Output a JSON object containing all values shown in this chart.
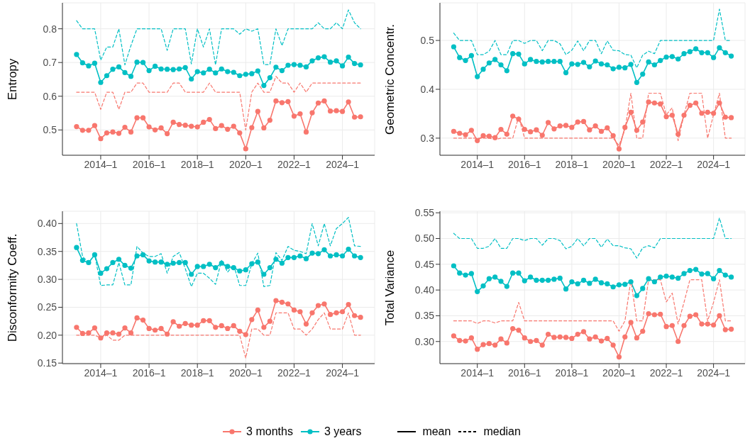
{
  "chart_data": [
    {
      "type": "line",
      "ylabel": "Entropy",
      "grid": true,
      "legend": "bottom",
      "annotations": [
        "mean",
        "median"
      ],
      "x": [
        "2013-01",
        "2013-04",
        "2013-07",
        "2013-10",
        "2014-01",
        "2014-04",
        "2014-07",
        "2014-10",
        "2015-01",
        "2015-04",
        "2015-07",
        "2015-10",
        "2016-01",
        "2016-04",
        "2016-07",
        "2016-10",
        "2017-01",
        "2017-04",
        "2017-07",
        "2017-10",
        "2018-01",
        "2018-04",
        "2018-07",
        "2018-10",
        "2019-01",
        "2019-04",
        "2019-07",
        "2019-10",
        "2020-01",
        "2020-04",
        "2020-07",
        "2020-10",
        "2021-01",
        "2021-04",
        "2021-07",
        "2021-10",
        "2022-01",
        "2022-04",
        "2022-07",
        "2022-10",
        "2023-01",
        "2023-04",
        "2023-07",
        "2023-10",
        "2024-01",
        "2024-04",
        "2024-07",
        "2024-10"
      ],
      "xlim": [
        "2012-06",
        "2025-05"
      ],
      "xticks": [
        {
          "value": "2014-01",
          "label": "2014–1"
        },
        {
          "value": "2016-01",
          "label": "2016–1"
        },
        {
          "value": "2018-01",
          "label": "2018–1"
        },
        {
          "value": "2020-01",
          "label": "2020–1"
        },
        {
          "value": "2022-01",
          "label": "2022–1"
        },
        {
          "value": "2024-01",
          "label": "2024–1"
        }
      ],
      "ylim": [
        0.425,
        0.877
      ],
      "yticks": [
        0.5,
        0.6,
        0.7,
        0.8
      ],
      "series": [
        {
          "name": "3 months",
          "color": "#f8766d",
          "marker": "circle",
          "line_style": "solid",
          "values": [
            0.51,
            0.499,
            0.499,
            0.513,
            0.474,
            0.491,
            0.494,
            0.49,
            0.508,
            0.494,
            0.536,
            0.536,
            0.509,
            0.5,
            0.506,
            0.489,
            0.523,
            0.516,
            0.514,
            0.511,
            0.509,
            0.523,
            0.531,
            0.504,
            0.513,
            0.502,
            0.511,
            0.491,
            0.444,
            0.507,
            0.555,
            0.506,
            0.529,
            0.586,
            0.581,
            0.584,
            0.541,
            0.548,
            0.494,
            0.551,
            0.58,
            0.586,
            0.556,
            0.557,
            0.555,
            0.583,
            0.538,
            0.539
          ]
        },
        {
          "name": "3 years",
          "color": "#00bfc4",
          "marker": "circle",
          "line_style": "solid",
          "values": [
            0.724,
            0.699,
            0.69,
            0.698,
            0.641,
            0.661,
            0.68,
            0.687,
            0.67,
            0.659,
            0.701,
            0.7,
            0.676,
            0.689,
            0.681,
            0.68,
            0.679,
            0.681,
            0.685,
            0.651,
            0.673,
            0.669,
            0.68,
            0.669,
            0.681,
            0.673,
            0.671,
            0.661,
            0.665,
            0.667,
            0.675,
            0.632,
            0.655,
            0.686,
            0.676,
            0.692,
            0.694,
            0.692,
            0.687,
            0.705,
            0.714,
            0.717,
            0.701,
            0.705,
            0.69,
            0.716,
            0.697,
            0.693
          ]
        },
        {
          "color": "#f8766d",
          "marker": "none",
          "line_style": "dashed",
          "values": [
            0.612,
            0.612,
            0.612,
            0.612,
            0.561,
            0.612,
            0.612,
            0.561,
            0.612,
            0.612,
            0.639,
            0.639,
            0.612,
            0.612,
            0.612,
            0.612,
            0.639,
            0.639,
            0.612,
            0.612,
            0.612,
            0.612,
            0.639,
            0.612,
            0.612,
            0.612,
            0.612,
            0.612,
            0.5,
            0.612,
            0.639,
            0.612,
            0.612,
            0.659,
            0.639,
            0.639,
            0.612,
            0.639,
            0.612,
            0.639,
            0.639,
            0.639,
            0.639,
            0.639,
            0.639,
            0.639,
            0.639,
            0.639
          ]
        },
        {
          "color": "#00bfc4",
          "marker": "none",
          "line_style": "dashed",
          "values": [
            0.824,
            0.8,
            0.8,
            0.8,
            0.707,
            0.746,
            0.746,
            0.8,
            0.693,
            0.75,
            0.8,
            0.8,
            0.8,
            0.8,
            0.8,
            0.736,
            0.8,
            0.8,
            0.8,
            0.696,
            0.8,
            0.746,
            0.8,
            0.693,
            0.8,
            0.8,
            0.8,
            0.784,
            0.8,
            0.793,
            0.8,
            0.694,
            0.694,
            0.8,
            0.75,
            0.8,
            0.8,
            0.8,
            0.8,
            0.8,
            0.818,
            0.8,
            0.8,
            0.818,
            0.8,
            0.856,
            0.818,
            0.8
          ]
        }
      ]
    },
    {
      "type": "line",
      "ylabel": "Geometric Concentr.",
      "grid": true,
      "x": [
        "2013-01",
        "2013-04",
        "2013-07",
        "2013-10",
        "2014-01",
        "2014-04",
        "2014-07",
        "2014-10",
        "2015-01",
        "2015-04",
        "2015-07",
        "2015-10",
        "2016-01",
        "2016-04",
        "2016-07",
        "2016-10",
        "2017-01",
        "2017-04",
        "2017-07",
        "2017-10",
        "2018-01",
        "2018-04",
        "2018-07",
        "2018-10",
        "2019-01",
        "2019-04",
        "2019-07",
        "2019-10",
        "2020-01",
        "2020-04",
        "2020-07",
        "2020-10",
        "2021-01",
        "2021-04",
        "2021-07",
        "2021-10",
        "2022-01",
        "2022-04",
        "2022-07",
        "2022-10",
        "2023-01",
        "2023-04",
        "2023-07",
        "2023-10",
        "2024-01",
        "2024-04",
        "2024-07",
        "2024-10"
      ],
      "xlim": [
        "2012-06",
        "2025-05"
      ],
      "xticks": [
        {
          "value": "2014-01",
          "label": "2014–1"
        },
        {
          "value": "2016-01",
          "label": "2016–1"
        },
        {
          "value": "2018-01",
          "label": "2018–1"
        },
        {
          "value": "2020-01",
          "label": "2020–1"
        },
        {
          "value": "2022-01",
          "label": "2022–1"
        },
        {
          "value": "2024-01",
          "label": "2024–1"
        }
      ],
      "ylim": [
        0.265,
        0.577
      ],
      "yticks": [
        0.3,
        0.4,
        0.5
      ],
      "series": [
        {
          "color": "#f8766d",
          "marker": "circle",
          "line_style": "solid",
          "values": [
            0.314,
            0.31,
            0.307,
            0.316,
            0.295,
            0.305,
            0.304,
            0.301,
            0.318,
            0.308,
            0.345,
            0.339,
            0.318,
            0.313,
            0.317,
            0.306,
            0.332,
            0.319,
            0.325,
            0.326,
            0.322,
            0.333,
            0.334,
            0.317,
            0.325,
            0.314,
            0.321,
            0.305,
            0.278,
            0.322,
            0.353,
            0.316,
            0.333,
            0.374,
            0.372,
            0.37,
            0.344,
            0.347,
            0.308,
            0.347,
            0.367,
            0.372,
            0.351,
            0.353,
            0.351,
            0.372,
            0.343,
            0.342
          ]
        },
        {
          "color": "#00bfc4",
          "marker": "circle",
          "line_style": "solid",
          "values": [
            0.487,
            0.465,
            0.459,
            0.469,
            0.426,
            0.441,
            0.454,
            0.461,
            0.45,
            0.438,
            0.473,
            0.472,
            0.452,
            0.461,
            0.457,
            0.456,
            0.457,
            0.457,
            0.457,
            0.434,
            0.452,
            0.451,
            0.455,
            0.446,
            0.458,
            0.452,
            0.45,
            0.442,
            0.445,
            0.444,
            0.451,
            0.414,
            0.431,
            0.456,
            0.45,
            0.459,
            0.466,
            0.467,
            0.462,
            0.473,
            0.477,
            0.483,
            0.475,
            0.475,
            0.465,
            0.485,
            0.475,
            0.468
          ]
        },
        {
          "color": "#f8766d",
          "marker": "none",
          "line_style": "dashed",
          "values": [
            0.3,
            0.3,
            0.3,
            0.3,
            0.3,
            0.3,
            0.3,
            0.297,
            0.3,
            0.3,
            0.3,
            0.344,
            0.3,
            0.3,
            0.3,
            0.3,
            0.3,
            0.3,
            0.3,
            0.3,
            0.3,
            0.3,
            0.3,
            0.3,
            0.3,
            0.3,
            0.3,
            0.3,
            0.285,
            0.318,
            0.392,
            0.3,
            0.3,
            0.392,
            0.392,
            0.392,
            0.348,
            0.362,
            0.295,
            0.348,
            0.392,
            0.392,
            0.392,
            0.3,
            0.348,
            0.392,
            0.3,
            0.3
          ]
        },
        {
          "color": "#00bfc4",
          "marker": "none",
          "line_style": "dashed",
          "values": [
            0.515,
            0.5,
            0.5,
            0.5,
            0.471,
            0.471,
            0.478,
            0.5,
            0.471,
            0.471,
            0.5,
            0.5,
            0.494,
            0.5,
            0.5,
            0.479,
            0.5,
            0.5,
            0.493,
            0.471,
            0.48,
            0.499,
            0.479,
            0.5,
            0.5,
            0.473,
            0.499,
            0.48,
            0.479,
            0.471,
            0.47,
            0.444,
            0.47,
            0.478,
            0.473,
            0.5,
            0.5,
            0.5,
            0.5,
            0.5,
            0.5,
            0.5,
            0.5,
            0.5,
            0.5,
            0.564,
            0.5,
            0.5
          ]
        }
      ]
    },
    {
      "type": "line",
      "ylabel": "Disconformity Coeff.",
      "grid": true,
      "x": [
        "2013-01",
        "2013-04",
        "2013-07",
        "2013-10",
        "2014-01",
        "2014-04",
        "2014-07",
        "2014-10",
        "2015-01",
        "2015-04",
        "2015-07",
        "2015-10",
        "2016-01",
        "2016-04",
        "2016-07",
        "2016-10",
        "2017-01",
        "2017-04",
        "2017-07",
        "2017-10",
        "2018-01",
        "2018-04",
        "2018-07",
        "2018-10",
        "2019-01",
        "2019-04",
        "2019-07",
        "2019-10",
        "2020-01",
        "2020-04",
        "2020-07",
        "2020-10",
        "2021-01",
        "2021-04",
        "2021-07",
        "2021-10",
        "2022-01",
        "2022-04",
        "2022-07",
        "2022-10",
        "2023-01",
        "2023-04",
        "2023-07",
        "2023-10",
        "2024-01",
        "2024-04",
        "2024-07",
        "2024-10"
      ],
      "xlim": [
        "2012-06",
        "2025-05"
      ],
      "xticks": [
        {
          "value": "2014-01",
          "label": "2014–1"
        },
        {
          "value": "2016-01",
          "label": "2016–1"
        },
        {
          "value": "2018-01",
          "label": "2018–1"
        },
        {
          "value": "2020-01",
          "label": "2020–1"
        },
        {
          "value": "2022-01",
          "label": "2022–1"
        },
        {
          "value": "2024-01",
          "label": "2024–1"
        }
      ],
      "ylim": [
        0.149,
        0.422
      ],
      "yticks": [
        {
          "value": 0.15,
          "label": "0.15"
        },
        {
          "value": 0.2,
          "label": "0.20"
        },
        {
          "value": 0.25,
          "label": "0.25"
        },
        {
          "value": 0.3,
          "label": "0.30"
        },
        {
          "value": 0.35,
          "label": "0.35"
        },
        {
          "value": 0.4,
          "label": "0.40"
        }
      ],
      "series": [
        {
          "color": "#f8766d",
          "marker": "circle",
          "line_style": "solid",
          "values": [
            0.214,
            0.203,
            0.204,
            0.213,
            0.195,
            0.204,
            0.204,
            0.202,
            0.213,
            0.204,
            0.231,
            0.227,
            0.212,
            0.209,
            0.212,
            0.202,
            0.224,
            0.216,
            0.221,
            0.218,
            0.218,
            0.226,
            0.226,
            0.214,
            0.217,
            0.212,
            0.217,
            0.207,
            0.201,
            0.228,
            0.245,
            0.214,
            0.225,
            0.262,
            0.259,
            0.256,
            0.245,
            0.242,
            0.22,
            0.24,
            0.253,
            0.256,
            0.237,
            0.24,
            0.242,
            0.255,
            0.235,
            0.232
          ]
        },
        {
          "color": "#00bfc4",
          "marker": "circle",
          "line_style": "solid",
          "values": [
            0.357,
            0.334,
            0.33,
            0.344,
            0.311,
            0.319,
            0.33,
            0.336,
            0.325,
            0.32,
            0.342,
            0.344,
            0.333,
            0.331,
            0.331,
            0.327,
            0.329,
            0.33,
            0.33,
            0.309,
            0.323,
            0.323,
            0.327,
            0.321,
            0.329,
            0.323,
            0.321,
            0.315,
            0.317,
            0.328,
            0.331,
            0.309,
            0.321,
            0.336,
            0.329,
            0.339,
            0.339,
            0.342,
            0.337,
            0.347,
            0.346,
            0.353,
            0.342,
            0.344,
            0.342,
            0.354,
            0.342,
            0.339
          ]
        },
        {
          "color": "#f8766d",
          "marker": "none",
          "line_style": "dashed",
          "values": [
            0.2,
            0.2,
            0.2,
            0.2,
            0.195,
            0.2,
            0.191,
            0.191,
            0.2,
            0.2,
            0.2,
            0.2,
            0.2,
            0.2,
            0.2,
            0.2,
            0.2,
            0.2,
            0.2,
            0.2,
            0.2,
            0.2,
            0.2,
            0.2,
            0.2,
            0.2,
            0.2,
            0.2,
            0.159,
            0.211,
            0.211,
            0.2,
            0.2,
            0.24,
            0.24,
            0.24,
            0.211,
            0.211,
            0.2,
            0.211,
            0.228,
            0.24,
            0.211,
            0.211,
            0.211,
            0.24,
            0.2,
            0.2
          ]
        },
        {
          "color": "#00bfc4",
          "marker": "none",
          "line_style": "dashed",
          "values": [
            0.4,
            0.341,
            0.33,
            0.344,
            0.289,
            0.29,
            0.29,
            0.33,
            0.29,
            0.29,
            0.359,
            0.347,
            0.341,
            0.341,
            0.346,
            0.311,
            0.341,
            0.348,
            0.319,
            0.287,
            0.311,
            0.311,
            0.302,
            0.291,
            0.334,
            0.313,
            0.326,
            0.289,
            0.289,
            0.328,
            0.347,
            0.287,
            0.289,
            0.348,
            0.334,
            0.359,
            0.352,
            0.35,
            0.346,
            0.4,
            0.36,
            0.4,
            0.36,
            0.391,
            0.4,
            0.411,
            0.36,
            0.359
          ]
        }
      ]
    },
    {
      "type": "line",
      "ylabel": "Total Variance",
      "grid": true,
      "x": [
        "2013-01",
        "2013-04",
        "2013-07",
        "2013-10",
        "2014-01",
        "2014-04",
        "2014-07",
        "2014-10",
        "2015-01",
        "2015-04",
        "2015-07",
        "2015-10",
        "2016-01",
        "2016-04",
        "2016-07",
        "2016-10",
        "2017-01",
        "2017-04",
        "2017-07",
        "2017-10",
        "2018-01",
        "2018-04",
        "2018-07",
        "2018-10",
        "2019-01",
        "2019-04",
        "2019-07",
        "2019-10",
        "2020-01",
        "2020-04",
        "2020-07",
        "2020-10",
        "2021-01",
        "2021-04",
        "2021-07",
        "2021-10",
        "2022-01",
        "2022-04",
        "2022-07",
        "2022-10",
        "2023-01",
        "2023-04",
        "2023-07",
        "2023-10",
        "2024-01",
        "2024-04",
        "2024-07",
        "2024-10"
      ],
      "xlim": [
        "2012-06",
        "2025-05"
      ],
      "xticks": [
        {
          "value": "2014-01",
          "label": "2014–1"
        },
        {
          "value": "2016-01",
          "label": "2016–1"
        },
        {
          "value": "2018-01",
          "label": "2018–1"
        },
        {
          "value": "2020-01",
          "label": "2020–1"
        },
        {
          "value": "2022-01",
          "label": "2022–1"
        },
        {
          "value": "2024-01",
          "label": "2024–1"
        }
      ],
      "ylim": [
        0.257,
        0.553
      ],
      "yticks": [
        {
          "value": 0.3,
          "label": "0.30"
        },
        {
          "value": 0.35,
          "label": "0.35"
        },
        {
          "value": 0.4,
          "label": "0.40"
        },
        {
          "value": 0.45,
          "label": "0.45"
        },
        {
          "value": 0.5,
          "label": "0.50"
        },
        {
          "value": 0.55,
          "label": "0.55"
        }
      ],
      "series": [
        {
          "color": "#f8766d",
          "marker": "circle",
          "line_style": "solid",
          "values": [
            0.311,
            0.302,
            0.301,
            0.307,
            0.285,
            0.294,
            0.296,
            0.293,
            0.305,
            0.297,
            0.325,
            0.322,
            0.307,
            0.3,
            0.302,
            0.293,
            0.314,
            0.308,
            0.309,
            0.308,
            0.306,
            0.314,
            0.319,
            0.305,
            0.309,
            0.301,
            0.306,
            0.293,
            0.27,
            0.309,
            0.337,
            0.307,
            0.32,
            0.354,
            0.352,
            0.353,
            0.329,
            0.331,
            0.3,
            0.331,
            0.349,
            0.352,
            0.334,
            0.334,
            0.332,
            0.35,
            0.323,
            0.324
          ]
        },
        {
          "color": "#00bfc4",
          "marker": "circle",
          "line_style": "solid",
          "values": [
            0.447,
            0.433,
            0.429,
            0.432,
            0.397,
            0.408,
            0.422,
            0.425,
            0.417,
            0.407,
            0.433,
            0.433,
            0.418,
            0.425,
            0.419,
            0.419,
            0.419,
            0.421,
            0.423,
            0.402,
            0.416,
            0.412,
            0.419,
            0.413,
            0.421,
            0.414,
            0.412,
            0.406,
            0.41,
            0.411,
            0.416,
            0.389,
            0.403,
            0.422,
            0.416,
            0.425,
            0.427,
            0.425,
            0.423,
            0.432,
            0.438,
            0.44,
            0.431,
            0.432,
            0.422,
            0.438,
            0.429,
            0.425
          ]
        },
        {
          "color": "#f8766d",
          "marker": "none",
          "line_style": "dashed",
          "values": [
            0.34,
            0.34,
            0.34,
            0.34,
            0.335,
            0.34,
            0.34,
            0.336,
            0.34,
            0.34,
            0.34,
            0.376,
            0.34,
            0.34,
            0.34,
            0.34,
            0.34,
            0.34,
            0.34,
            0.34,
            0.34,
            0.34,
            0.34,
            0.34,
            0.34,
            0.34,
            0.34,
            0.34,
            0.32,
            0.34,
            0.42,
            0.34,
            0.34,
            0.42,
            0.42,
            0.42,
            0.377,
            0.394,
            0.334,
            0.376,
            0.42,
            0.42,
            0.42,
            0.34,
            0.376,
            0.42,
            0.34,
            0.34
          ]
        },
        {
          "color": "#00bfc4",
          "marker": "none",
          "line_style": "dashed",
          "values": [
            0.51,
            0.5,
            0.5,
            0.5,
            0.481,
            0.481,
            0.485,
            0.5,
            0.481,
            0.481,
            0.5,
            0.5,
            0.496,
            0.5,
            0.5,
            0.487,
            0.5,
            0.5,
            0.496,
            0.48,
            0.485,
            0.5,
            0.486,
            0.5,
            0.5,
            0.483,
            0.499,
            0.486,
            0.486,
            0.482,
            0.48,
            0.462,
            0.482,
            0.486,
            0.482,
            0.5,
            0.5,
            0.5,
            0.5,
            0.5,
            0.5,
            0.5,
            0.5,
            0.5,
            0.5,
            0.54,
            0.5,
            0.5
          ]
        }
      ]
    }
  ]
}
